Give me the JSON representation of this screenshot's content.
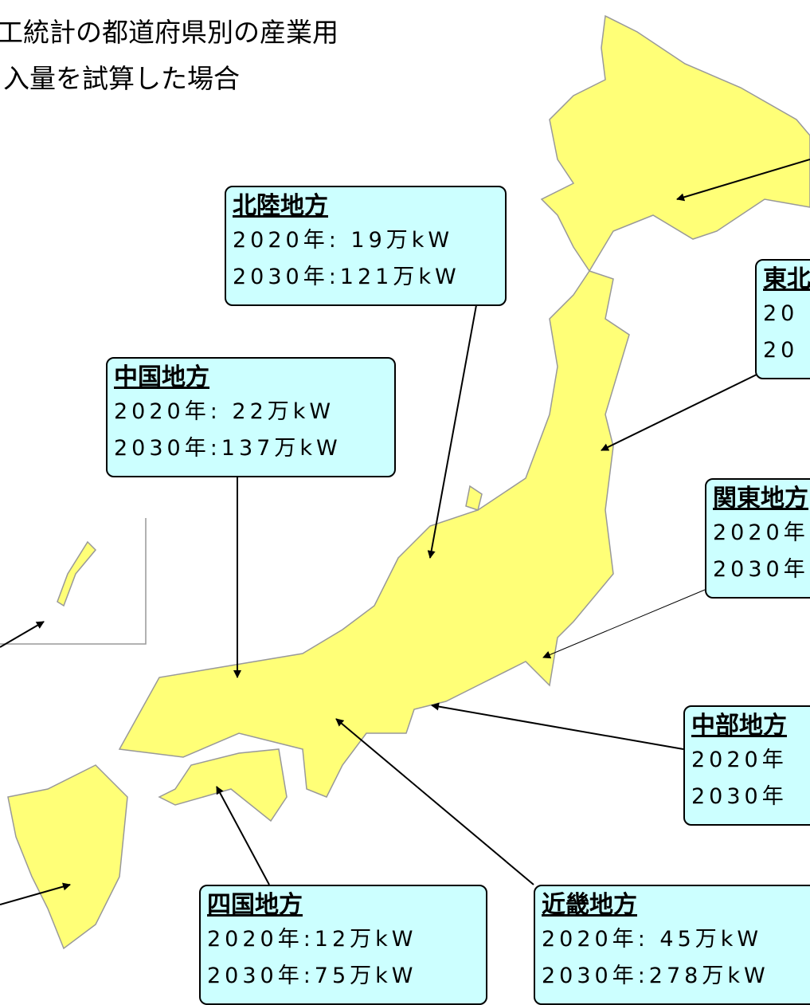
{
  "header": {
    "lines": [
      "工統計の都道府県別の産業用",
      "入量を試算した場合"
    ]
  },
  "callouts": [
    {
      "title": "北陸地方",
      "lines": [
        "2020年: 19万kW",
        "2030年:121万kW"
      ]
    },
    {
      "title": "中国地方",
      "lines": [
        "2020年: 22万kW",
        "2030年:137万kW"
      ]
    },
    {
      "title": "東北",
      "lines": [
        "20",
        "20"
      ]
    },
    {
      "title": "関東地方",
      "lines": [
        "2020年",
        "2030年"
      ]
    },
    {
      "title": "中部地方",
      "lines": [
        "2020年",
        "2030年"
      ]
    },
    {
      "title": "四国地方",
      "lines": [
        "2020年:12万kW",
        "2030年:75万kW"
      ]
    },
    {
      "title": "近畿地方",
      "lines": [
        "2020年: 45万kW",
        "2030年:278万kW"
      ]
    }
  ]
}
